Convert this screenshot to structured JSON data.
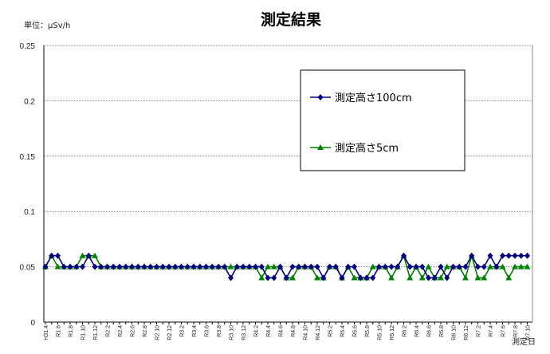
{
  "chart_data": {
    "type": "line",
    "title": "測定結果",
    "unit_label": "単位：μSv/h",
    "xlabel": "測定日",
    "ylabel": "",
    "ylim": [
      0,
      0.25
    ],
    "yticks": [
      0,
      0.05,
      0.1,
      0.15,
      0.2,
      0.25
    ],
    "ytick_labels": [
      "0",
      "0.05",
      "0.1",
      "0.15",
      "0.2",
      "0.25"
    ],
    "grid": "horizontal dotted",
    "legend_position": "top-right inside box",
    "tick_labels": [
      "H31.4",
      "R1.6",
      "R1.8",
      "R1.10",
      "R1.12",
      "R2.2",
      "R2.4",
      "R2.6",
      "R2.8",
      "R2.10",
      "R2.12",
      "R3.2",
      "R3.4",
      "R3.6",
      "R3.8",
      "R3.10",
      "R3.12",
      "R4.2",
      "R4.4",
      "R4.6",
      "R4.8",
      "R4.10",
      "R4.12",
      "R5.2",
      "R5.4",
      "R5.6",
      "R5.8",
      "R5.10",
      "R5.12",
      "R6.2",
      "R6.4",
      "R6.6",
      "R6.8",
      "R6.10",
      "R6.12",
      "R7.2",
      "R7.4",
      "R7.6",
      "R7.8",
      "R7.10"
    ],
    "series": [
      {
        "name": "測定高さ100cm",
        "color": "#000080",
        "marker": "diamond",
        "values": [
          0.05,
          0.06,
          0.06,
          0.05,
          0.05,
          0.05,
          0.05,
          0.06,
          0.05,
          0.05,
          0.05,
          0.05,
          0.05,
          0.05,
          0.05,
          0.05,
          0.05,
          0.05,
          0.05,
          0.05,
          0.05,
          0.05,
          0.05,
          0.05,
          0.05,
          0.05,
          0.05,
          0.05,
          0.05,
          0.05,
          0.04,
          0.05,
          0.05,
          0.05,
          0.05,
          0.05,
          0.04,
          0.04,
          0.05,
          0.04,
          0.05,
          0.05,
          0.05,
          0.05,
          0.05,
          0.04,
          0.05,
          0.05,
          0.04,
          0.05,
          0.05,
          0.04,
          0.04,
          0.04,
          0.05,
          0.05,
          0.05,
          0.05,
          0.06,
          0.05,
          0.05,
          0.05,
          0.04,
          0.04,
          0.05,
          0.04,
          0.05,
          0.05,
          0.05,
          0.06,
          0.05,
          0.05,
          0.06,
          0.05,
          0.06,
          0.06,
          0.06,
          0.06,
          0.06
        ]
      },
      {
        "name": "測定高さ5cm",
        "color": "#008000",
        "marker": "triangle",
        "values": [
          0.05,
          0.06,
          0.05,
          0.05,
          0.05,
          0.05,
          0.06,
          0.06,
          0.06,
          0.05,
          0.05,
          0.05,
          0.05,
          0.05,
          0.05,
          0.05,
          0.05,
          0.05,
          0.05,
          0.05,
          0.05,
          0.05,
          0.05,
          0.05,
          0.05,
          0.05,
          0.05,
          0.05,
          0.05,
          0.05,
          0.05,
          0.05,
          0.05,
          0.05,
          0.05,
          0.04,
          0.05,
          0.05,
          0.05,
          0.04,
          0.04,
          0.05,
          0.05,
          0.05,
          0.04,
          0.04,
          0.05,
          0.05,
          0.04,
          0.05,
          0.04,
          0.04,
          0.04,
          0.05,
          0.05,
          0.05,
          0.04,
          0.05,
          0.06,
          0.04,
          0.05,
          0.04,
          0.05,
          0.04,
          0.04,
          0.05,
          0.05,
          0.05,
          0.04,
          0.06,
          0.04,
          0.04,
          0.05,
          0.05,
          0.05,
          0.04,
          0.05,
          0.05,
          0.05
        ]
      }
    ]
  }
}
